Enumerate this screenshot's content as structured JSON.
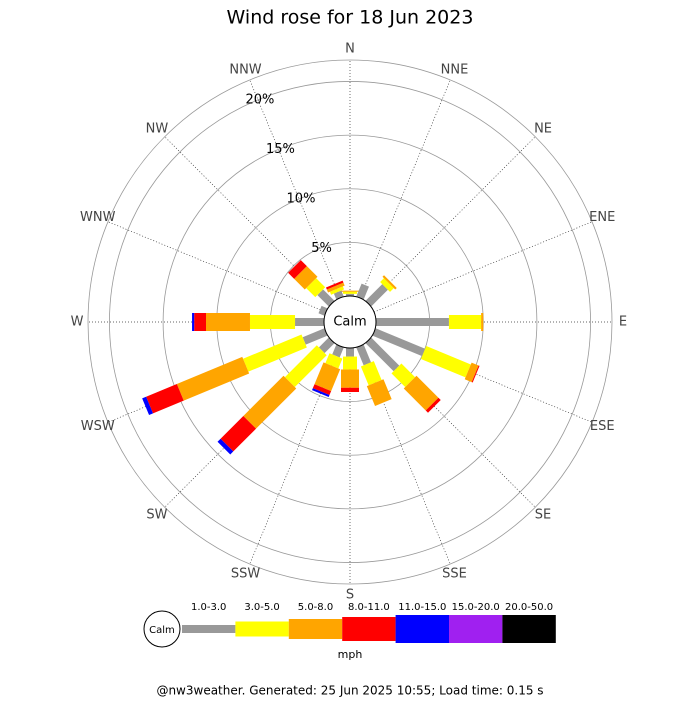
{
  "chart_data": {
    "type": "windrose",
    "title": "Wind rose for 18 Jun 2023",
    "directions": [
      "N",
      "NNE",
      "NE",
      "ENE",
      "E",
      "ESE",
      "SE",
      "SSE",
      "S",
      "SSW",
      "SW",
      "WSW",
      "W",
      "WNW",
      "NW",
      "NNW"
    ],
    "rlim": [
      0,
      22
    ],
    "rticks": [
      {
        "value": 5,
        "label": "5%"
      },
      {
        "value": 10,
        "label": "10%"
      },
      {
        "value": 15,
        "label": "15%"
      },
      {
        "value": 20,
        "label": "20%"
      }
    ],
    "grid": true,
    "calm_label": "Calm",
    "unit": "mph",
    "series": [
      {
        "name": "1.0-3.0",
        "color": "#999999",
        "values": [
          0.2,
          1.3,
          2.2,
          0,
          6.8,
          5.0,
          3.7,
          1.8,
          0.8,
          1.0,
          1.3,
          2.2,
          2.7,
          0.6,
          1.5,
          0.6
        ]
      },
      {
        "name": "3.0-5.0",
        "color": "#ffff00",
        "values": [
          0.2,
          0,
          0.5,
          0,
          3.0,
          4.5,
          1.8,
          1.9,
          1.2,
          1.0,
          4.2,
          5.9,
          4.2,
          0,
          1.2,
          0.3
        ]
      },
      {
        "name": "5.0-8.0",
        "color": "#ffa500",
        "values": [
          0.1,
          0,
          0.2,
          0,
          0.2,
          0.7,
          2.9,
          2.0,
          1.7,
          2.2,
          5.3,
          6.6,
          4.1,
          0,
          1.4,
          0.3
        ]
      },
      {
        "name": "8.0-11.0",
        "color": "#ff0000",
        "values": [
          0,
          0,
          0,
          0,
          0,
          0.1,
          0.3,
          0,
          0.4,
          0.4,
          3.0,
          3.1,
          1.1,
          0,
          0.8,
          0.2
        ]
      },
      {
        "name": "11.0-15.0",
        "color": "#0000ff",
        "values": [
          0,
          0,
          0,
          0,
          0,
          0,
          0,
          0,
          0,
          0.2,
          0.4,
          0.4,
          0.2,
          0,
          0,
          0
        ]
      },
      {
        "name": "15.0-20.0",
        "color": "#a020f0",
        "values": [
          0,
          0,
          0,
          0,
          0,
          0,
          0,
          0,
          0,
          0,
          0,
          0,
          0,
          0,
          0,
          0
        ]
      },
      {
        "name": "20.0-50.0",
        "color": "#000000",
        "values": [
          0,
          0,
          0,
          0,
          0,
          0,
          0,
          0,
          0,
          0,
          0,
          0,
          0,
          0,
          0,
          0
        ]
      }
    ],
    "footer": "@nw3weather. Generated: 25 Jun 2025 10:55; Load time: 0.15 s"
  }
}
